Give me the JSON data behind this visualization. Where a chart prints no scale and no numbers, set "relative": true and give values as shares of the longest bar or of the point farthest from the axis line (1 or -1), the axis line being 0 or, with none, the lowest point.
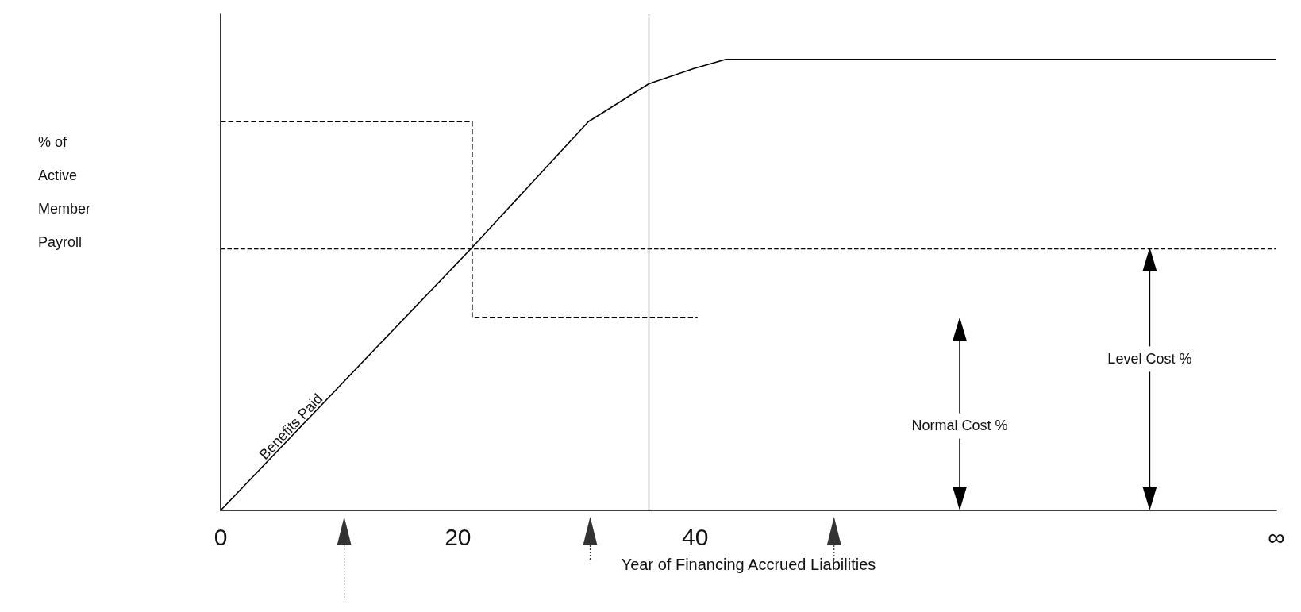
{
  "chart_data": {
    "type": "line",
    "relative": true,
    "ylabel": "% of Active Member Payroll",
    "xlabel": "Year of Financing Accrued Liabilities",
    "xlim": [
      0,
      89
    ],
    "xticks": [
      0,
      20,
      40,
      {
        "value": 89,
        "label": "∞"
      }
    ],
    "series": [
      {
        "name": "Benefits Paid",
        "color": "#000000",
        "x": [
          0,
          21.2,
          31,
          36.1,
          39.9,
          42.6,
          89
        ],
        "values": [
          0,
          0.583,
          0.862,
          0.946,
          0.98,
          1,
          1
        ]
      },
      {
        "type": "step",
        "color": "#000000",
        "line_style": "dashed",
        "x": [
          0,
          21.2,
          40.2
        ],
        "values": [
          0.862,
          0.428,
          0.428
        ]
      }
    ],
    "ref_lines": [
      {
        "axis": "y",
        "value": 0.583,
        "color": "#000000",
        "line_style": "dashed"
      },
      {
        "axis": "x",
        "value": 36.1,
        "color": "#888888",
        "line_style": "solid"
      }
    ],
    "annotations": [
      "Normal Cost %",
      "Level Cost %"
    ],
    "grid": false,
    "legend": false,
    "marker": "none"
  }
}
